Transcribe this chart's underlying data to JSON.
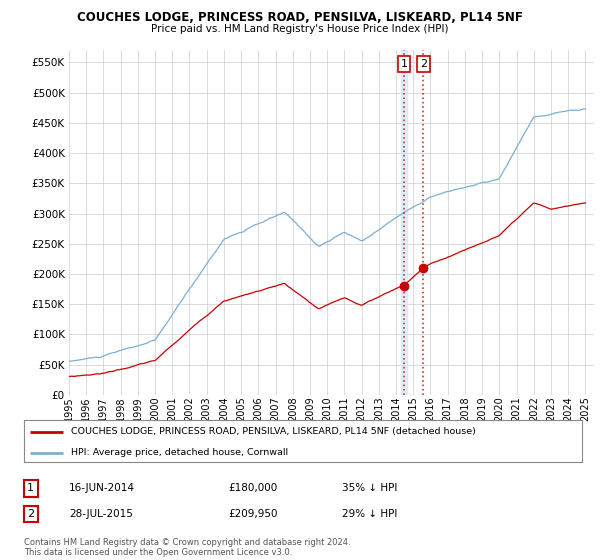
{
  "title": "COUCHES LODGE, PRINCESS ROAD, PENSILVA, LISKEARD, PL14 5NF",
  "subtitle": "Price paid vs. HM Land Registry's House Price Index (HPI)",
  "legend_label_red": "COUCHES LODGE, PRINCESS ROAD, PENSILVA, LISKEARD, PL14 5NF (detached house)",
  "legend_label_blue": "HPI: Average price, detached house, Cornwall",
  "transaction1_label": "16-JUN-2014",
  "transaction1_price": "£180,000",
  "transaction1_hpi": "35% ↓ HPI",
  "transaction2_label": "28-JUL-2015",
  "transaction2_price": "£209,950",
  "transaction2_hpi": "29% ↓ HPI",
  "transaction1_date_num": 2014.46,
  "transaction1_price_val": 180000,
  "transaction2_date_num": 2015.58,
  "transaction2_price_val": 209950,
  "ylim": [
    0,
    570000
  ],
  "yticks": [
    0,
    50000,
    100000,
    150000,
    200000,
    250000,
    300000,
    350000,
    400000,
    450000,
    500000,
    550000
  ],
  "xlim_start": 1995,
  "xlim_end": 2025.5,
  "footnote": "Contains HM Land Registry data © Crown copyright and database right 2024.\nThis data is licensed under the Open Government Licence v3.0.",
  "background_color": "#ffffff",
  "grid_color": "#cccccc",
  "red_color": "#cc0000",
  "blue_color": "#7bafd4"
}
